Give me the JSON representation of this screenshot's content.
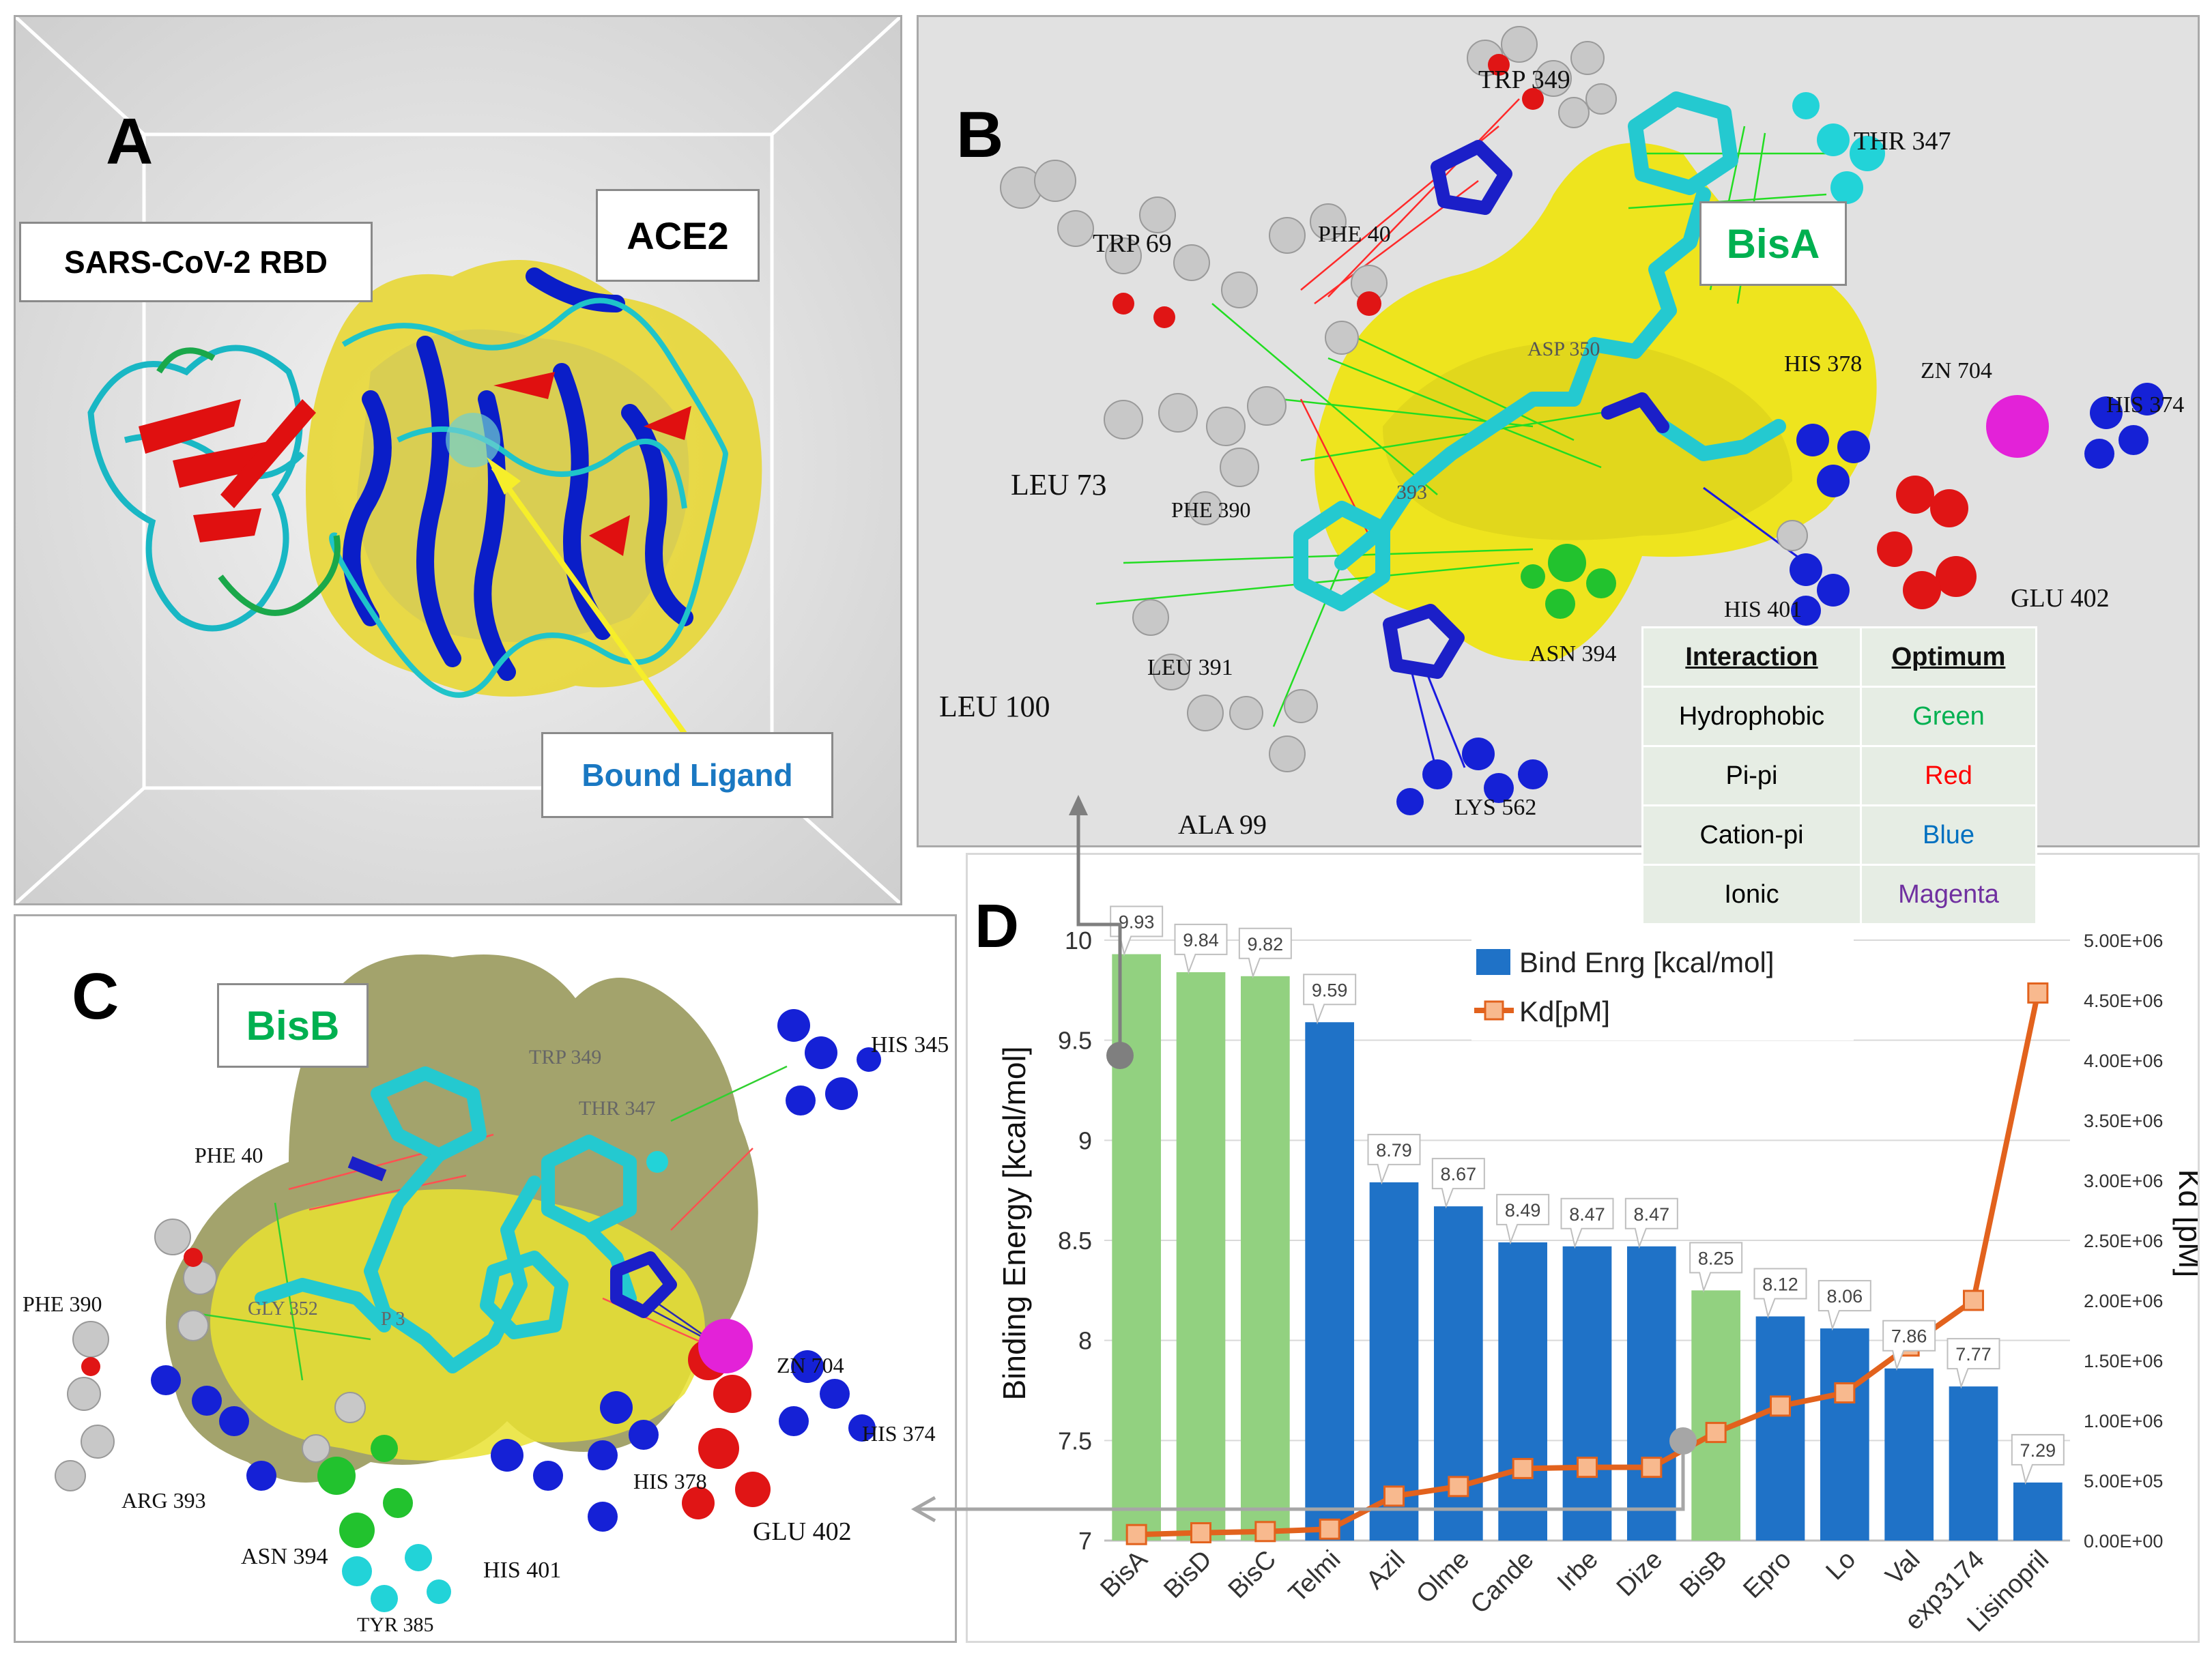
{
  "panels": {
    "a": {
      "letter": "A",
      "rbd_label": "SARS-CoV-2 RBD",
      "ace2_label": "ACE2",
      "ligand_label": "Bound Ligand"
    },
    "b": {
      "letter": "B",
      "ligand_label": "BisA",
      "residues": [
        "TRP 349",
        "THR 347",
        "TRP 69",
        "PHE 40",
        "ASP 350",
        "HIS 378",
        "ZN 704",
        "HIS 374",
        "LEU 73",
        "PHE 390",
        "393",
        "GLU 402",
        "HIS 401",
        "ASN 394",
        "LEU 391",
        "LEU 100",
        "ALA 99",
        "LYS 562"
      ]
    },
    "c": {
      "letter": "C",
      "ligand_label": "BisB",
      "residues": [
        "TRP 349",
        "HIS 345",
        "THR 347",
        "PHE 40",
        "GLY 352",
        "P 3",
        "PHE 390",
        "ZN 704",
        "HIS 374",
        "ARG 393",
        "HIS 378",
        "ASN 394",
        "GLU 402",
        "HIS 401",
        "TYR 385"
      ]
    },
    "d": {
      "letter": "D"
    }
  },
  "legend": {
    "headers": [
      "Interaction",
      "Optimum"
    ],
    "rows": [
      {
        "interaction": "Hydrophobic",
        "optimum": "Green",
        "color": "#00b050"
      },
      {
        "interaction": "Pi-pi",
        "optimum": "Red",
        "color": "#ff0000"
      },
      {
        "interaction": "Cation-pi",
        "optimum": "Blue",
        "color": "#0070c0"
      },
      {
        "interaction": "Ionic",
        "optimum": "Magenta",
        "color": "#7030a0"
      }
    ]
  },
  "chart_data": {
    "type": "bar",
    "categories": [
      "BisA",
      "BisD",
      "BisC",
      "Telmi",
      "Azil",
      "Olme",
      "Cande",
      "Irbe",
      "Dize",
      "BisB",
      "Epro",
      "Lo",
      "Val",
      "exp3174",
      "Lisinopril"
    ],
    "series": [
      {
        "name": "Bind Enrg [kcal/mol]",
        "type": "bar",
        "axis": "left",
        "values": [
          9.93,
          9.84,
          9.82,
          9.59,
          8.79,
          8.67,
          8.49,
          8.47,
          8.47,
          8.25,
          8.12,
          8.06,
          7.86,
          7.77,
          7.29
        ],
        "value_labels": [
          "9.93",
          "9.84",
          "9.82",
          "9.59",
          "8.79",
          "8.67",
          "8.49",
          "8.47",
          "8.47",
          "8.25",
          "8.12",
          "8.06",
          "7.86",
          "7.77",
          "7.29"
        ],
        "highlight": [
          true,
          true,
          true,
          false,
          false,
          false,
          false,
          false,
          false,
          true,
          false,
          false,
          false,
          false,
          false
        ]
      },
      {
        "name": "Kd[pM]",
        "type": "line",
        "axis": "right",
        "values": [
          50000,
          65000,
          75000,
          95000,
          370000,
          450000,
          600000,
          610000,
          610000,
          900000,
          1120000,
          1230000,
          1620000,
          2000000,
          4560000
        ]
      }
    ],
    "ylabel": "Binding Energy [kcal/mol]",
    "y2label": "Kd [pM]",
    "ylim": [
      7,
      10
    ],
    "yticks": [
      "7",
      "7.5",
      "8",
      "8.5",
      "9",
      "9.5",
      "10"
    ],
    "y2lim": [
      0,
      5000000
    ],
    "y2ticks": [
      "0.00E+00",
      "5.00E+05",
      "1.00E+06",
      "1.50E+06",
      "2.00E+06",
      "2.50E+06",
      "3.00E+06",
      "3.50E+06",
      "4.00E+06",
      "4.50E+06",
      "5.00E+06"
    ],
    "colors": {
      "highlight": "#92d180",
      "bar": "#1f72c7",
      "line": "#e2621d",
      "marker_fill": "#f8b98e"
    },
    "legend_position": "top-center",
    "grid": true
  }
}
